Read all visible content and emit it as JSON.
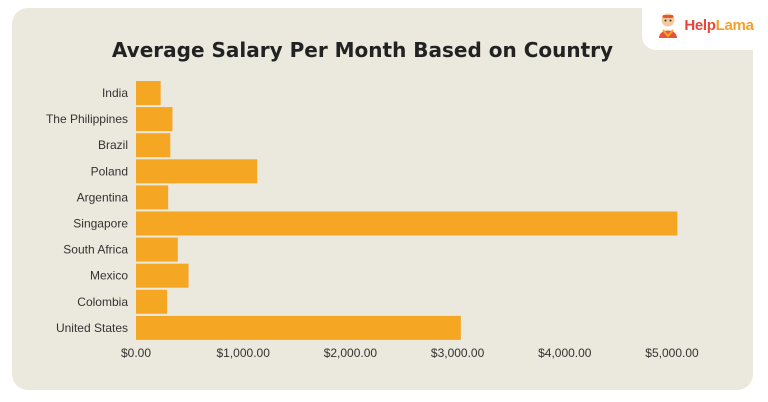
{
  "brand": {
    "help_text": "Help",
    "lama_text": "Lama",
    "logo_icon": "monk-mascot-icon"
  },
  "chart_data": {
    "type": "bar",
    "orientation": "horizontal",
    "title": "Average Salary Per Month Based on Country",
    "xlabel": "",
    "ylabel": "",
    "categories": [
      "India",
      "The Philippines",
      "Brazil",
      "Poland",
      "Argentina",
      "Singapore",
      "South Africa",
      "Mexico",
      "Colombia",
      "United States"
    ],
    "values": [
      230,
      340,
      320,
      1130,
      300,
      5050,
      390,
      490,
      290,
      3030
    ],
    "xlim": [
      0,
      5000
    ],
    "xticks": [
      0,
      1000,
      2000,
      3000,
      4000,
      5000
    ],
    "xtick_labels": [
      "$0.00",
      "$1,000.00",
      "$2,000.00",
      "$3,000.00",
      "$4,000.00",
      "$5,000.00"
    ],
    "bar_color": "#f5a623",
    "grid": false,
    "legend": "none"
  }
}
